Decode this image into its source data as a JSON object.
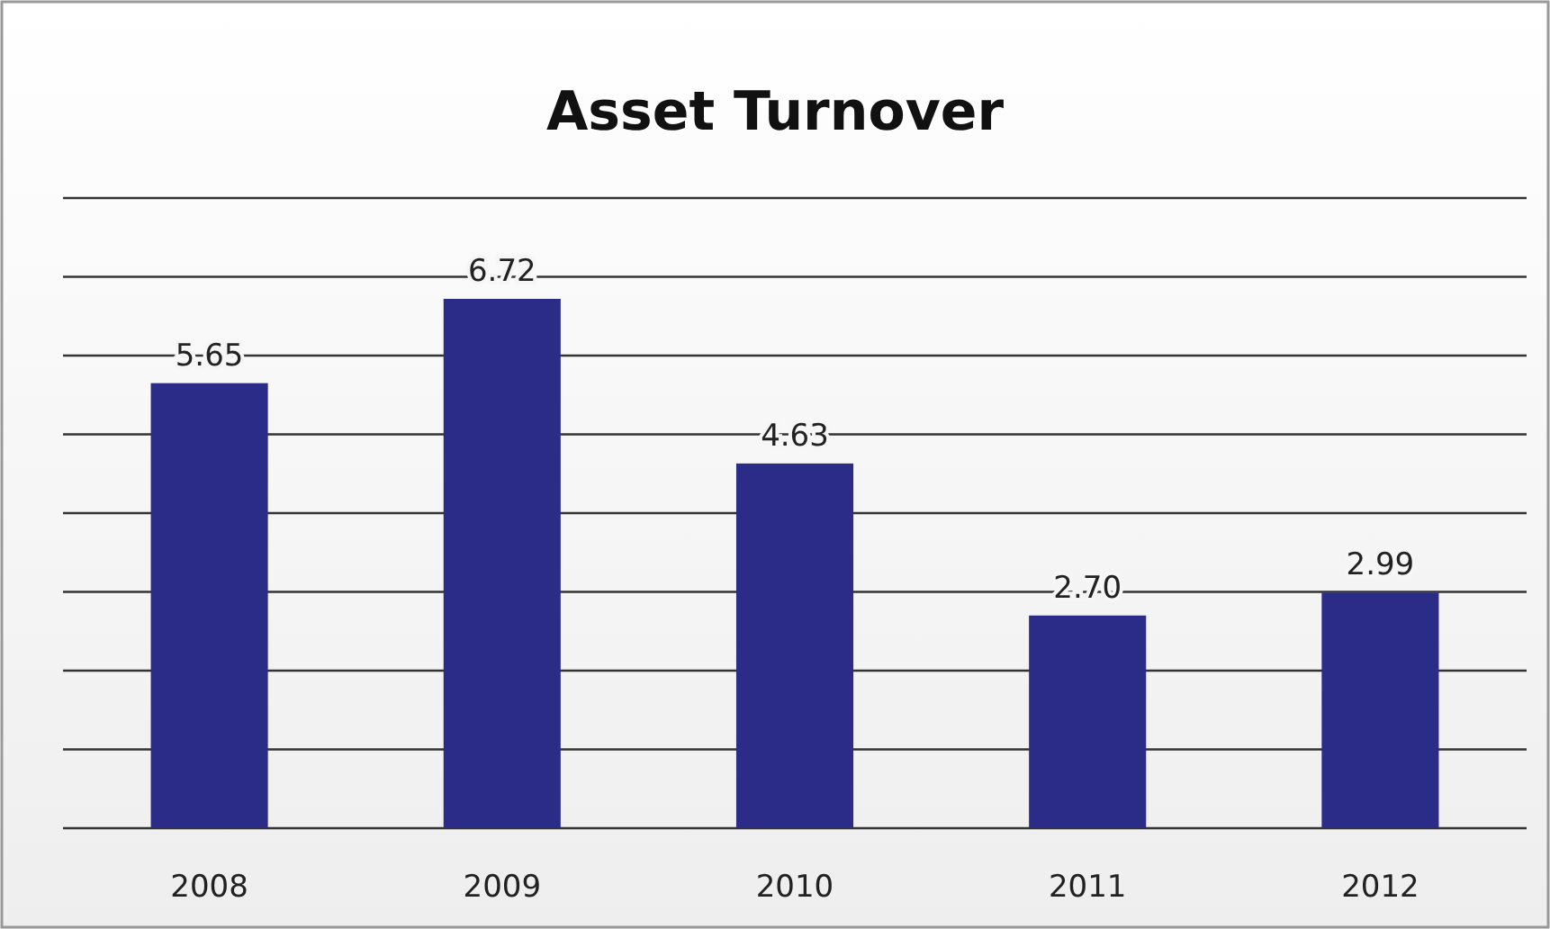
{
  "chart_data": {
    "type": "bar",
    "title": "Asset Turnover",
    "categories": [
      "2008",
      "2009",
      "2010",
      "2011",
      "2012"
    ],
    "values": [
      5.65,
      6.72,
      4.63,
      2.7,
      2.99
    ],
    "value_labels": [
      "5.65",
      "6.72",
      "4.63",
      "2.70",
      "2.99"
    ],
    "color": "#2b2c87",
    "ylim": [
      0,
      8
    ],
    "yticks": [
      {
        "value": 0,
        "label": null
      },
      {
        "value": 1,
        "label": null
      },
      {
        "value": 2,
        "label": null
      },
      {
        "value": 3,
        "label": null
      },
      {
        "value": 4,
        "label": null
      },
      {
        "value": 5,
        "label": null
      },
      {
        "value": 6,
        "label": null
      },
      {
        "value": 7,
        "label": null
      },
      {
        "value": 8,
        "label": null
      }
    ],
    "grid": "y"
  }
}
